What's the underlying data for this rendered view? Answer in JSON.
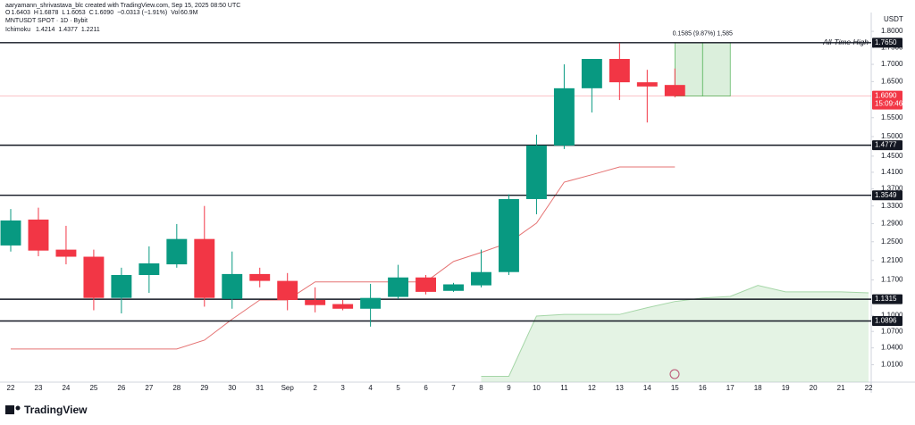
{
  "header": {
    "credit": "aaryamann_shrivastava_blc created with TradingView.com, Sep 15, 2025 08:50 UTC",
    "items": [
      {
        "key": "O",
        "text": "1.6403"
      },
      {
        "key": "H",
        "text": "1.6878"
      },
      {
        "key": "L",
        "text": "1.6053"
      },
      {
        "key": "C",
        "text": "1.6090"
      },
      {
        "key": "",
        "text": "−0.0313 (−1.91%)"
      },
      {
        "key": "Vol",
        "text": "60.9M"
      }
    ]
  },
  "footer": {
    "brand": "TradingView"
  },
  "chart_data": {
    "type": "candlestick",
    "title": "MNTUSDT SPOT · 1D · Bybit",
    "y_axis_label": "USDT",
    "log_scale": true,
    "grid": false,
    "up_color": "#089981",
    "down_color": "#f23645",
    "categories": [
      "22",
      "23",
      "24",
      "25",
      "26",
      "27",
      "28",
      "29",
      "30",
      "31",
      "Sep",
      "2",
      "3",
      "4",
      "5",
      "6",
      "7",
      "8",
      "9",
      "10",
      "11",
      "12",
      "13",
      "14",
      "15",
      "16",
      "17",
      "18",
      "19",
      "20",
      "21",
      "22"
    ],
    "open": [
      1.242,
      1.299,
      1.233,
      1.218,
      1.134,
      1.18,
      1.202,
      1.256,
      1.132,
      1.182,
      1.168,
      1.13,
      1.122,
      1.113,
      1.136,
      1.175,
      1.148,
      1.159,
      1.186,
      1.346,
      1.477,
      1.631,
      1.716,
      1.648,
      1.6403,
      null,
      null,
      null,
      null,
      null,
      null,
      null
    ],
    "high": [
      1.323,
      1.326,
      1.285,
      1.233,
      1.195,
      1.24,
      1.289,
      1.33,
      1.229,
      1.195,
      1.184,
      1.155,
      1.13,
      1.162,
      1.201,
      1.18,
      1.164,
      1.233,
      1.357,
      1.505,
      1.7,
      1.716,
      1.764,
      1.684,
      1.6878,
      null,
      null,
      null,
      null,
      null,
      null,
      null
    ],
    "low": [
      1.229,
      1.219,
      1.202,
      1.11,
      1.104,
      1.144,
      1.195,
      1.117,
      1.113,
      1.155,
      1.11,
      1.106,
      1.11,
      1.079,
      1.132,
      1.141,
      1.146,
      1.155,
      1.18,
      1.311,
      1.468,
      1.564,
      1.598,
      1.537,
      1.6053,
      null,
      null,
      null,
      null,
      null,
      null,
      null
    ],
    "close": [
      1.297,
      1.231,
      1.218,
      1.134,
      1.18,
      1.204,
      1.256,
      1.134,
      1.182,
      1.168,
      1.13,
      1.12,
      1.113,
      1.134,
      1.175,
      1.146,
      1.161,
      1.186,
      1.346,
      1.477,
      1.631,
      1.716,
      1.648,
      1.636,
      1.609,
      null,
      null,
      null,
      null,
      null,
      null,
      null
    ],
    "ylim": [
      0.98,
      1.82
    ],
    "yticks": [
      {
        "value": 1.8,
        "label": "1.8000"
      },
      {
        "value": 1.75,
        "label": "1.7500"
      },
      {
        "value": 1.7,
        "label": "1.7000"
      },
      {
        "value": 1.65,
        "label": "1.6500"
      },
      {
        "value": 1.55,
        "label": "1.5500"
      },
      {
        "value": 1.5,
        "label": "1.5000"
      },
      {
        "value": 1.45,
        "label": "1.4500"
      },
      {
        "value": 1.41,
        "label": "1.4100"
      },
      {
        "value": 1.37,
        "label": "1.3700"
      },
      {
        "value": 1.33,
        "label": "1.3300"
      },
      {
        "value": 1.29,
        "label": "1.2900"
      },
      {
        "value": 1.25,
        "label": "1.2500"
      },
      {
        "value": 1.21,
        "label": "1.2100"
      },
      {
        "value": 1.17,
        "label": "1.1700"
      },
      {
        "value": 1.1,
        "label": "1.1000"
      },
      {
        "value": 1.07,
        "label": "1.0700"
      },
      {
        "value": 1.04,
        "label": "1.0400"
      },
      {
        "value": 1.01,
        "label": "1.0100"
      }
    ],
    "indicator": {
      "name": "Ichimoku",
      "readout": [
        "1.4214",
        "1.4377",
        "1.2211"
      ],
      "conversion": {
        "color": "#e57373",
        "values": [
          1.038,
          1.038,
          1.038,
          1.038,
          1.038,
          1.038,
          1.038,
          1.054,
          1.093,
          1.13,
          1.13,
          1.166,
          1.166,
          1.166,
          1.166,
          1.166,
          1.208,
          1.227,
          1.248,
          1.291,
          1.386,
          1.404,
          1.423,
          1.423,
          1.423,
          null,
          null,
          null,
          null,
          null,
          null,
          null
        ]
      },
      "cloud": {
        "color": "#a5d6a7",
        "values": [
          null,
          null,
          null,
          null,
          null,
          null,
          null,
          null,
          null,
          null,
          null,
          null,
          null,
          null,
          null,
          null,
          null,
          0.99,
          0.99,
          1.099,
          1.102,
          1.102,
          1.102,
          1.115,
          1.127,
          1.134,
          1.137,
          1.159,
          1.146,
          1.146,
          1.146,
          1.144
        ]
      }
    },
    "levels": [
      {
        "value": 1.765,
        "label": "1.7650",
        "note": "All-Time High"
      },
      {
        "value": 1.4777,
        "label": "1.4777"
      },
      {
        "value": 1.3549,
        "label": "1.3549"
      },
      {
        "value": 1.1315,
        "label": "1.1315"
      },
      {
        "value": 1.0896,
        "label": "1.0896"
      }
    ],
    "current": {
      "value": 1.609,
      "label": "1.6090",
      "countdown": "15:09:46",
      "color": "#f23645"
    },
    "measure": {
      "text": "0.1585 (9.87%) 1,585",
      "color": "#4caf50"
    }
  }
}
